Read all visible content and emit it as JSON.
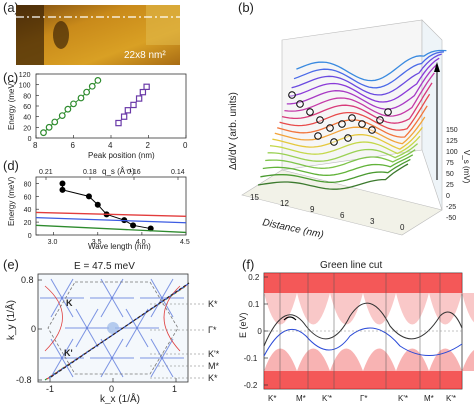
{
  "panels": {
    "a": {
      "letter": "(a)",
      "scale_label": "22x8 nm²"
    },
    "b": {
      "letter": "(b)",
      "ylabel": "Δd/dV (arb. units)",
      "xlabel": "Distance (nm)",
      "zlabel": "V_s (mV)",
      "x_ticks": [
        "15",
        "12",
        "9",
        "6",
        "3",
        "0"
      ],
      "z_ticks": [
        "150",
        "125",
        "100",
        "75",
        "50",
        "25",
        "0",
        "-25",
        "-50"
      ]
    },
    "c": {
      "letter": "(c)",
      "ylabel": "Energy (meV)",
      "xlabel": "Peak position (nm)",
      "x_ticks": [
        "8",
        "6",
        "4",
        "2",
        "0"
      ],
      "y_ticks": [
        "0",
        "20",
        "40",
        "60",
        "80",
        "100",
        "120"
      ]
    },
    "d": {
      "letter": "(d)",
      "ylabel": "Energy (meV)",
      "xlabel": "Wave length (nm)",
      "top_label": "q_s (Å⁻¹)",
      "x_ticks": [
        "3.0",
        "3.5",
        "4.0",
        "4.5"
      ],
      "top_ticks": [
        "0.21",
        "0.18",
        "0.16",
        "0.14"
      ],
      "y_ticks": [
        "0",
        "20",
        "40",
        "60",
        "80"
      ]
    },
    "e": {
      "letter": "(e)",
      "title": "E = 47.5 meV",
      "ylabel": "k_y (1/Å)",
      "xlabel": "k_x (1/Å)",
      "x_ticks": [
        "-1",
        "0",
        "1"
      ],
      "y_ticks": [
        "0.8",
        "0",
        "-0.8"
      ],
      "k_label": "K",
      "kp_label": "K'",
      "side_labels": [
        "K*",
        "Γ*",
        "K'*",
        "M*",
        "K*"
      ]
    },
    "f": {
      "letter": "(f)",
      "title": "Green line cut",
      "ylabel": "E (eV)",
      "y_ticks": [
        "0.2",
        "0.1",
        "0",
        "-0.1",
        "-0.2"
      ],
      "x_ticks": [
        "K*",
        "M*",
        "K'*",
        "Γ*",
        "K'*",
        "M*",
        "K'*"
      ]
    }
  },
  "chart_data": [
    {
      "type": "scatter",
      "panel": "c",
      "xlabel": "Peak position (nm)",
      "ylabel": "Energy (meV)",
      "xlim": [
        8,
        0
      ],
      "ylim": [
        0,
        120
      ],
      "series": [
        {
          "color": "#2e8b2e",
          "x": [
            7.6,
            7.3,
            7.0,
            6.6,
            6.3,
            6.0,
            5.6,
            5.3,
            5.0,
            4.7
          ],
          "y": [
            10,
            20,
            30,
            42,
            54,
            64,
            75,
            86,
            97,
            108
          ]
        },
        {
          "color": "#6a3aa8",
          "x": [
            3.6,
            3.3,
            3.1,
            2.8,
            2.5,
            2.3,
            2.1
          ],
          "y": [
            28,
            40,
            52,
            62,
            74,
            86,
            96
          ]
        }
      ]
    },
    {
      "type": "line",
      "panel": "d",
      "xlabel": "Wave length (nm)",
      "ylabel": "Energy (meV)",
      "top_label": "q_s (Å⁻¹)",
      "xlim": [
        2.8,
        4.5
      ],
      "ylim": [
        0,
        90
      ],
      "series": [
        {
          "color": "#000000",
          "x": [
            3.1,
            3.1,
            3.4,
            3.5,
            3.6,
            3.8,
            3.9,
            4.1
          ],
          "y": [
            80,
            70,
            60,
            47,
            32,
            23,
            15,
            10
          ]
        },
        {
          "color": "#e23c3c",
          "x": [
            2.8,
            4.5
          ],
          "y": [
            35,
            29
          ]
        },
        {
          "color": "#3c5be2",
          "x": [
            2.8,
            4.5
          ],
          "y": [
            27,
            19
          ]
        },
        {
          "color": "#2e8b2e",
          "x": [
            2.8,
            4.5
          ],
          "y": [
            15,
            4
          ]
        }
      ]
    }
  ]
}
